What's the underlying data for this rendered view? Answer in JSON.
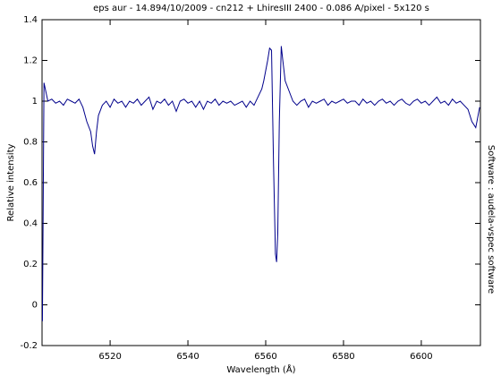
{
  "chart_data": {
    "type": "line",
    "title": "eps aur - 14.894/10/2009 - cn212 + LhiresIII 2400 - 0.086 A/pixel - 5x120 s",
    "x_label": "Wavelength (Å)",
    "y_label": "Relative intensity",
    "side_note": "Software : audela-vspec software",
    "color": "#00008b",
    "xlim": [
      6502.5,
      6615.2
    ],
    "ylim": [
      -0.2,
      1.4
    ],
    "xticks": [
      6520,
      6540,
      6560,
      6580,
      6600
    ],
    "yticks": [
      -0.2,
      0,
      0.2,
      0.4,
      0.6,
      0.8,
      1,
      1.2,
      1.4
    ],
    "x": [
      6502.6,
      6503,
      6504,
      6505,
      6506,
      6507,
      6508,
      6509,
      6510,
      6511,
      6512,
      6513,
      6514,
      6515,
      6515.5,
      6516,
      6516.5,
      6517,
      6518,
      6519,
      6520,
      6521,
      6522,
      6523,
      6524,
      6525,
      6526,
      6527,
      6528,
      6529,
      6530,
      6531,
      6532,
      6533,
      6534,
      6535,
      6536,
      6537,
      6538,
      6539,
      6540,
      6541,
      6542,
      6543,
      6544,
      6545,
      6546,
      6547,
      6548,
      6549,
      6550,
      6551,
      6552,
      6553,
      6554,
      6555,
      6556,
      6557,
      6558,
      6559,
      6559.5,
      6560,
      6560.5,
      6561,
      6561.5,
      6562,
      6562.5,
      6562.8,
      6563.1,
      6563.5,
      6564,
      6564.4,
      6565,
      6566,
      6567,
      6568,
      6569,
      6570,
      6571,
      6572,
      6573,
      6574,
      6575,
      6576,
      6577,
      6578,
      6579,
      6580,
      6581,
      6582,
      6583,
      6584,
      6585,
      6586,
      6587,
      6588,
      6589,
      6590,
      6591,
      6592,
      6593,
      6594,
      6595,
      6596,
      6597,
      6598,
      6599,
      6600,
      6601,
      6602,
      6603,
      6604,
      6605,
      6606,
      6607,
      6608,
      6609,
      6610,
      6611,
      6612,
      6613,
      6614,
      6615
    ],
    "values": [
      -0.08,
      1.09,
      1.0,
      1.01,
      0.99,
      1.0,
      0.98,
      1.01,
      1.0,
      0.99,
      1.01,
      0.97,
      0.9,
      0.85,
      0.78,
      0.74,
      0.85,
      0.93,
      0.98,
      1.0,
      0.97,
      1.01,
      0.99,
      1.0,
      0.97,
      1.0,
      0.99,
      1.01,
      0.98,
      1.0,
      1.02,
      0.96,
      1.0,
      0.99,
      1.01,
      0.98,
      1.0,
      0.95,
      1.0,
      1.01,
      0.99,
      1.0,
      0.97,
      1.0,
      0.96,
      1.0,
      0.99,
      1.01,
      0.98,
      1.0,
      0.99,
      1.0,
      0.98,
      0.99,
      1.0,
      0.97,
      1.0,
      0.98,
      1.02,
      1.06,
      1.1,
      1.15,
      1.2,
      1.26,
      1.25,
      0.7,
      0.25,
      0.21,
      0.35,
      0.9,
      1.27,
      1.2,
      1.1,
      1.05,
      1.0,
      0.98,
      1.0,
      1.01,
      0.97,
      1.0,
      0.99,
      1.0,
      1.01,
      0.98,
      1.0,
      0.99,
      1.0,
      1.01,
      0.99,
      1.0,
      1.0,
      0.98,
      1.01,
      0.99,
      1.0,
      0.98,
      1.0,
      1.01,
      0.99,
      1.0,
      0.98,
      1.0,
      1.01,
      0.99,
      0.98,
      1.0,
      1.01,
      0.99,
      1.0,
      0.98,
      1.0,
      1.02,
      0.99,
      1.0,
      0.98,
      1.01,
      0.99,
      1.0,
      0.98,
      0.96,
      0.9,
      0.87,
      0.97
    ]
  }
}
